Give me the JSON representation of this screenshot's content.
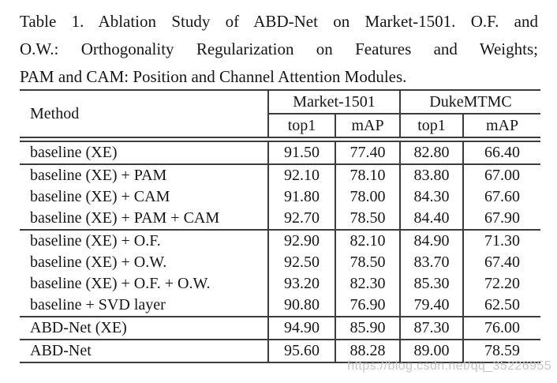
{
  "caption": {
    "line1": "Table 1. Ablation Study of ABD-Net on Market-1501. O.F. and",
    "line2": "O.W.: Orthogonality Regularization on Features and Weights;",
    "line3": "PAM and CAM: Position and Channel Attention Modules."
  },
  "table": {
    "header": {
      "method": "Method",
      "groups": [
        {
          "label": "Market-1501",
          "sub": [
            "top1",
            "mAP"
          ]
        },
        {
          "label": "DukeMTMC",
          "sub": [
            "top1",
            "mAP"
          ]
        }
      ]
    },
    "rows": [
      {
        "method": "baseline (XE)",
        "values": [
          "91.50",
          "77.40",
          "82.80",
          "66.40"
        ]
      },
      {
        "method": "baseline (XE) + PAM",
        "values": [
          "92.10",
          "78.10",
          "83.80",
          "67.00"
        ]
      },
      {
        "method": "baseline (XE) + CAM",
        "values": [
          "91.80",
          "78.00",
          "84.30",
          "67.60"
        ]
      },
      {
        "method": "baseline (XE) + PAM + CAM",
        "values": [
          "92.70",
          "78.50",
          "84.40",
          "67.90"
        ]
      },
      {
        "method": "baseline (XE) + O.F.",
        "values": [
          "92.90",
          "82.10",
          "84.90",
          "71.30"
        ]
      },
      {
        "method": "baseline (XE) + O.W.",
        "values": [
          "92.50",
          "78.50",
          "83.70",
          "67.40"
        ]
      },
      {
        "method": "baseline (XE) + O.F. + O.W.",
        "values": [
          "93.20",
          "82.30",
          "85.30",
          "72.20"
        ]
      },
      {
        "method": "baseline + SVD layer",
        "values": [
          "90.80",
          "76.90",
          "79.40",
          "62.50"
        ]
      },
      {
        "method": "ABD-Net (XE)",
        "values": [
          "94.90",
          "85.90",
          "87.30",
          "76.00"
        ]
      },
      {
        "method": "ABD-Net",
        "values": [
          "95.60",
          "88.28",
          "89.00",
          "78.59"
        ]
      }
    ]
  },
  "watermark": {
    "text": "https://blog.csdn.net/qq_35226955",
    "color": "#c7c7c7"
  },
  "colors": {
    "text": "#161616",
    "rule": "#3d3d3d",
    "background": "#ffffff"
  },
  "chart_data": {
    "type": "table",
    "title": "Table 1. Ablation Study of ABD-Net on Market-1501",
    "columns": [
      "Method",
      "Market-1501 top1",
      "Market-1501 mAP",
      "DukeMTMC top1",
      "DukeMTMC mAP"
    ],
    "rows": [
      [
        "baseline (XE)",
        91.5,
        77.4,
        82.8,
        66.4
      ],
      [
        "baseline (XE) + PAM",
        92.1,
        78.1,
        83.8,
        67.0
      ],
      [
        "baseline (XE) + CAM",
        91.8,
        78.0,
        84.3,
        67.6
      ],
      [
        "baseline (XE) + PAM + CAM",
        92.7,
        78.5,
        84.4,
        67.9
      ],
      [
        "baseline (XE) + O.F.",
        92.9,
        82.1,
        84.9,
        71.3
      ],
      [
        "baseline (XE) + O.W.",
        92.5,
        78.5,
        83.7,
        67.4
      ],
      [
        "baseline (XE) + O.F. + O.W.",
        93.2,
        82.3,
        85.3,
        72.2
      ],
      [
        "baseline + SVD layer",
        90.8,
        76.9,
        79.4,
        62.5
      ],
      [
        "ABD-Net (XE)",
        94.9,
        85.9,
        87.3,
        76.0
      ],
      [
        "ABD-Net",
        95.6,
        88.28,
        89.0,
        78.59
      ]
    ]
  }
}
